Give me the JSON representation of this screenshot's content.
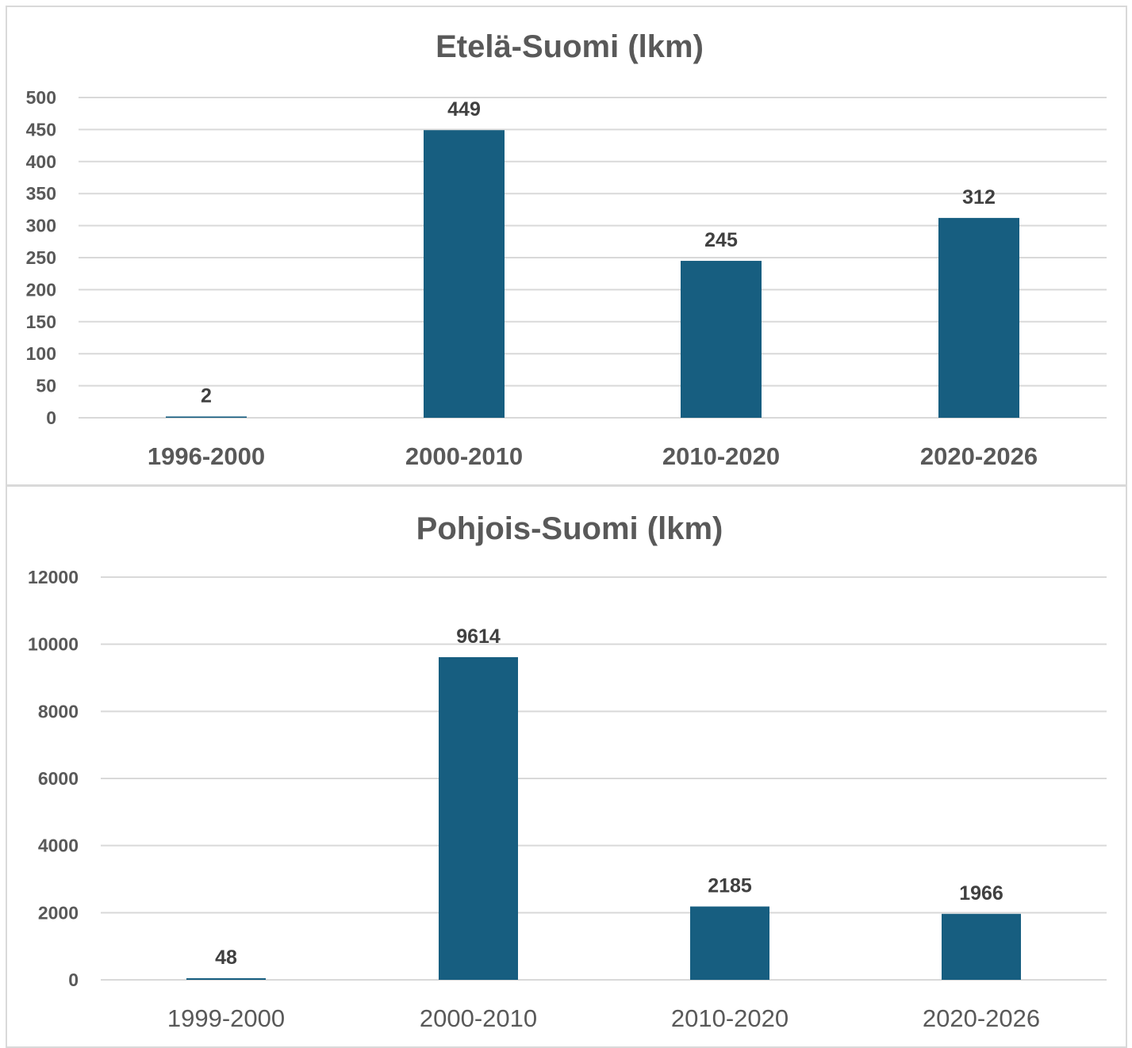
{
  "chart_data": [
    {
      "type": "bar",
      "title": "Etelä-Suomi (lkm)",
      "categories": [
        "1996-2000",
        "2000-2010",
        "2010-2020",
        "2020-2026"
      ],
      "values": [
        2,
        449,
        245,
        312
      ],
      "data_labels": [
        "2",
        "449",
        "245",
        "312"
      ],
      "yticks": [
        "0",
        "50",
        "100",
        "150",
        "200",
        "250",
        "300",
        "350",
        "400",
        "450",
        "500"
      ],
      "ylim": [
        0,
        500
      ],
      "xlabel": "",
      "ylabel": "",
      "grid": true,
      "legend": "none",
      "bar_color": "#175E80"
    },
    {
      "type": "bar",
      "title": "Pohjois-Suomi (lkm)",
      "categories": [
        "1999-2000",
        "2000-2010",
        "2010-2020",
        "2020-2026"
      ],
      "values": [
        48,
        9614,
        2185,
        1966
      ],
      "data_labels": [
        "48",
        "9614",
        "2185",
        "1966"
      ],
      "yticks": [
        "0",
        "2000",
        "4000",
        "6000",
        "8000",
        "10000",
        "12000"
      ],
      "ylim": [
        0,
        12000
      ],
      "xlabel": "",
      "ylabel": "",
      "grid": true,
      "legend": "none",
      "bar_color": "#175E80"
    }
  ]
}
